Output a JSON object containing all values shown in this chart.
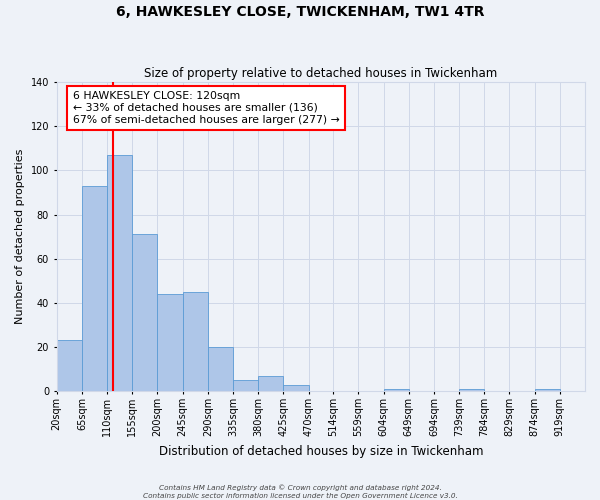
{
  "title": "6, HAWKESLEY CLOSE, TWICKENHAM, TW1 4TR",
  "subtitle": "Size of property relative to detached houses in Twickenham",
  "xlabel": "Distribution of detached houses by size in Twickenham",
  "ylabel": "Number of detached properties",
  "bin_labels": [
    "20sqm",
    "65sqm",
    "110sqm",
    "155sqm",
    "200sqm",
    "245sqm",
    "290sqm",
    "335sqm",
    "380sqm",
    "425sqm",
    "470sqm",
    "514sqm",
    "559sqm",
    "604sqm",
    "649sqm",
    "694sqm",
    "739sqm",
    "784sqm",
    "829sqm",
    "874sqm",
    "919sqm"
  ],
  "bin_edges": [
    20,
    65,
    110,
    155,
    200,
    245,
    290,
    335,
    380,
    425,
    470,
    514,
    559,
    604,
    649,
    694,
    739,
    784,
    829,
    874,
    919
  ],
  "bar_values": [
    23,
    93,
    107,
    71,
    44,
    45,
    20,
    5,
    7,
    3,
    0,
    0,
    0,
    1,
    0,
    0,
    1,
    0,
    0,
    1
  ],
  "bar_color": "#aec6e8",
  "bar_edge_color": "#5b9bd5",
  "grid_color": "#d0d8e8",
  "background_color": "#eef2f8",
  "vline_x": 120,
  "vline_color": "red",
  "annotation_line1": "6 HAWKESLEY CLOSE: 120sqm",
  "annotation_line2": "← 33% of detached houses are smaller (136)",
  "annotation_line3": "67% of semi-detached houses are larger (277) →",
  "annotation_box_color": "white",
  "annotation_box_edge_color": "red",
  "ylim": [
    0,
    140
  ],
  "yticks": [
    0,
    20,
    40,
    60,
    80,
    100,
    120,
    140
  ],
  "footer_line1": "Contains HM Land Registry data © Crown copyright and database right 2024.",
  "footer_line2": "Contains public sector information licensed under the Open Government Licence v3.0."
}
